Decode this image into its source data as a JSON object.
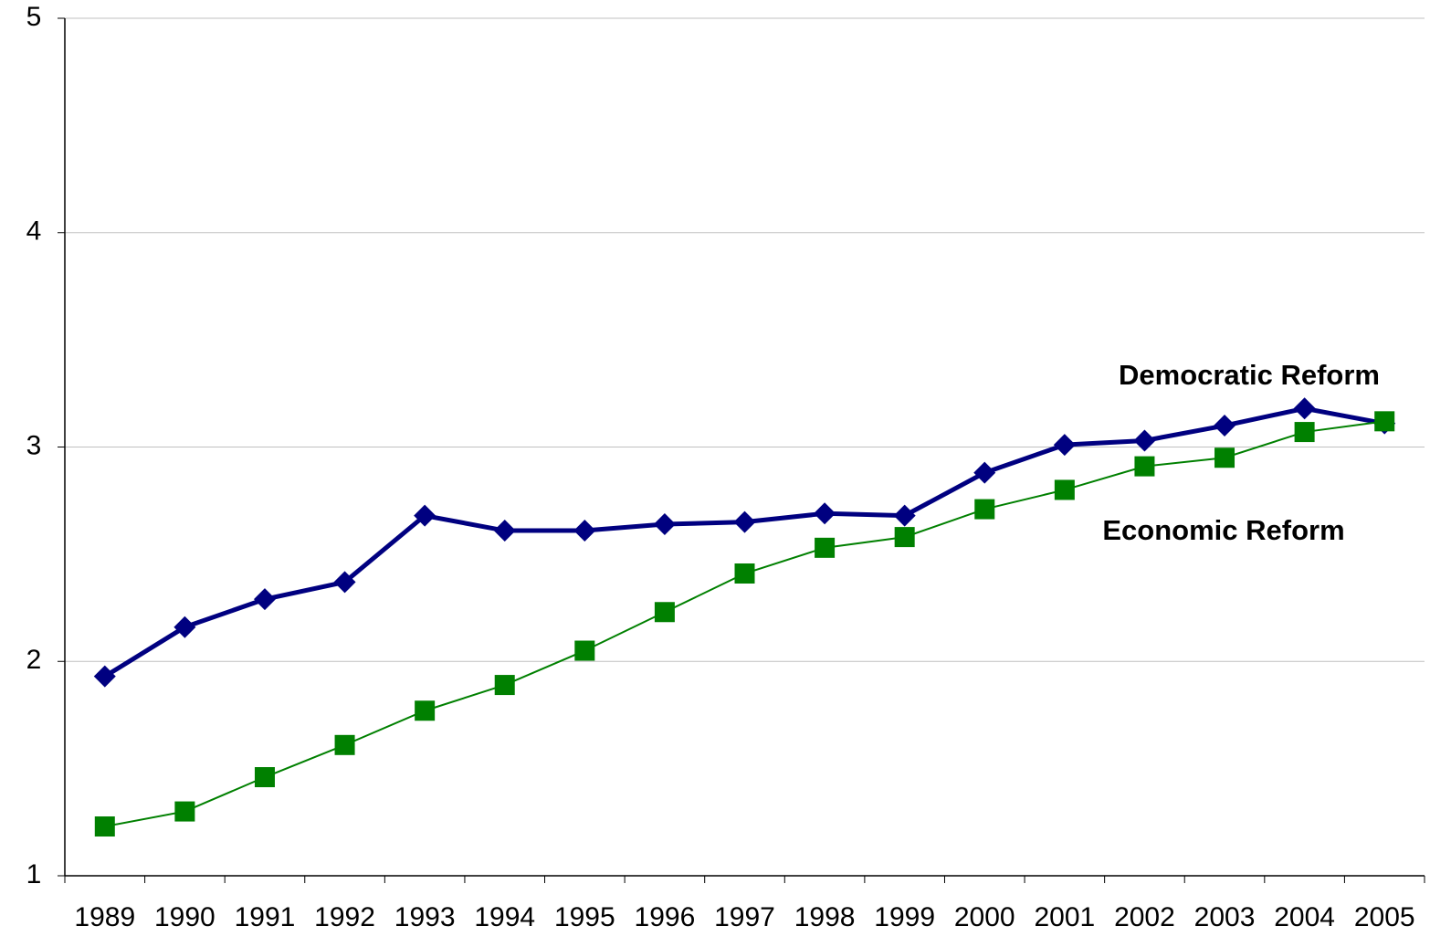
{
  "chart_data": {
    "type": "line",
    "categories": [
      "1989",
      "1990",
      "1991",
      "1992",
      "1993",
      "1994",
      "1995",
      "1996",
      "1997",
      "1998",
      "1999",
      "2000",
      "2001",
      "2002",
      "2003",
      "2004",
      "2005"
    ],
    "series": [
      {
        "name": "Democratic Reform",
        "color": "#000080",
        "marker": "diamond",
        "values": [
          1.93,
          2.16,
          2.29,
          2.37,
          2.68,
          2.61,
          2.61,
          2.64,
          2.65,
          2.69,
          2.68,
          2.88,
          3.01,
          3.03,
          3.1,
          3.18,
          3.11
        ]
      },
      {
        "name": "Economic Reform",
        "color": "#008000",
        "marker": "square",
        "values": [
          1.23,
          1.3,
          1.46,
          1.61,
          1.77,
          1.89,
          2.05,
          2.23,
          2.41,
          2.53,
          2.58,
          2.71,
          2.8,
          2.91,
          2.95,
          3.07,
          3.12
        ]
      }
    ],
    "ylim": [
      1,
      5
    ],
    "yticks": [
      1,
      2,
      3,
      4,
      5
    ],
    "grid": true
  }
}
